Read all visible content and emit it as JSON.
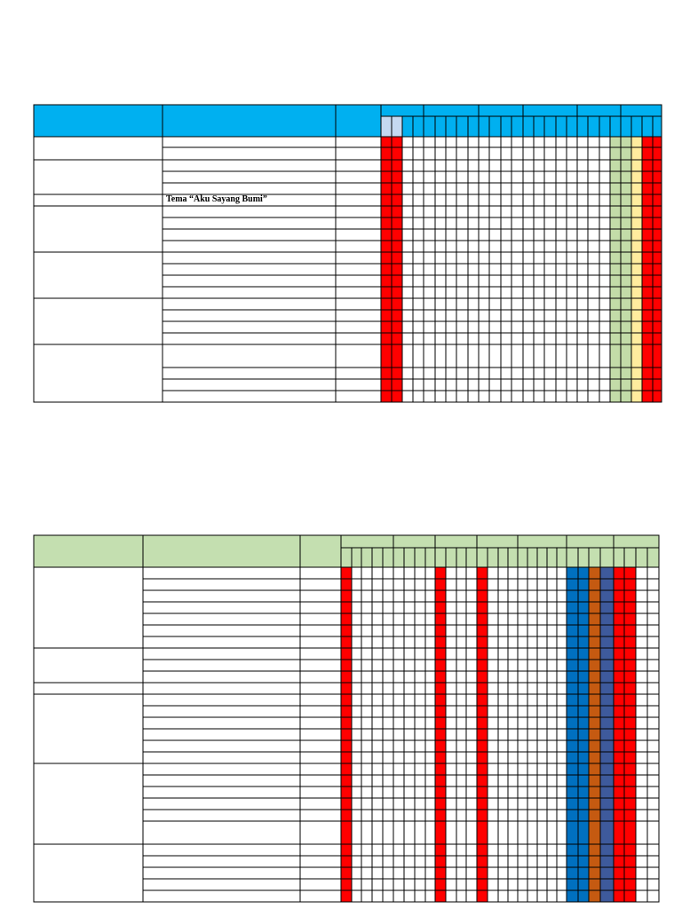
{
  "colors": {
    "header_blue": "#00b0f0",
    "header_lightblue": "#c5d9f1",
    "header_green": "#c4dfb0",
    "red": "#ff0000",
    "light_green": "#c3dca8",
    "light_yellow": "#ffec9e",
    "blue": "#0070c0",
    "brown": "#c55a11",
    "slate": "#3e5a9c",
    "grid": "#000000"
  },
  "table1": {
    "theme_row_text": "Tema “Aku Sayang Bumi”"
  },
  "table2": {}
}
